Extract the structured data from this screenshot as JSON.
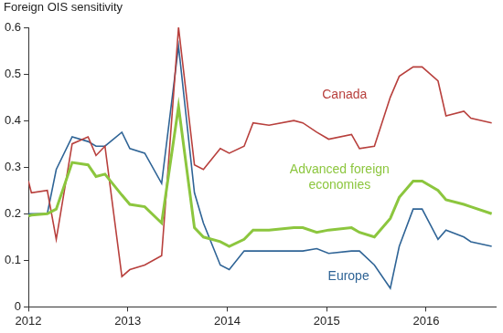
{
  "chart_data": {
    "type": "line",
    "ylabel": "Foreign OIS sensitivity",
    "x": [
      2012.0,
      2012.03,
      2012.19,
      2012.28,
      2012.44,
      2012.6,
      2012.68,
      2012.77,
      2012.94,
      2013.02,
      2013.17,
      2013.34,
      2013.51,
      2013.67,
      2013.76,
      2013.93,
      2014.02,
      2014.17,
      2014.26,
      2014.42,
      2014.67,
      2014.76,
      2014.9,
      2015.02,
      2015.25,
      2015.33,
      2015.48,
      2015.64,
      2015.73,
      2015.87,
      2015.96,
      2016.12,
      2016.2,
      2016.38,
      2016.45,
      2016.66
    ],
    "series": [
      {
        "name": "Canada",
        "color": "#b8403d",
        "values": [
          0.27,
          0.245,
          0.25,
          0.145,
          0.35,
          0.365,
          0.325,
          0.345,
          0.065,
          0.08,
          0.09,
          0.11,
          0.6,
          0.305,
          0.295,
          0.34,
          0.33,
          0.345,
          0.395,
          0.39,
          0.4,
          0.395,
          0.375,
          0.36,
          0.37,
          0.34,
          0.345,
          0.45,
          0.495,
          0.515,
          0.515,
          0.485,
          0.41,
          0.42,
          0.405,
          0.395
        ]
      },
      {
        "name": "Advanced foreign economies",
        "color": "#8cc63e",
        "values": [
          0.195,
          0.197,
          0.2,
          0.21,
          0.31,
          0.305,
          0.28,
          0.285,
          0.24,
          0.22,
          0.215,
          0.18,
          0.43,
          0.17,
          0.15,
          0.14,
          0.13,
          0.145,
          0.165,
          0.165,
          0.17,
          0.17,
          0.16,
          0.165,
          0.17,
          0.16,
          0.15,
          0.19,
          0.235,
          0.27,
          0.27,
          0.25,
          0.23,
          0.22,
          0.215,
          0.2
        ]
      },
      {
        "name": "Europe",
        "color": "#2f6496",
        "values": [
          0.2,
          0.2,
          0.2,
          0.295,
          0.365,
          0.355,
          0.345,
          0.345,
          0.375,
          0.34,
          0.33,
          0.265,
          0.56,
          0.245,
          0.18,
          0.09,
          0.08,
          0.12,
          0.12,
          0.12,
          0.12,
          0.12,
          0.125,
          0.115,
          0.12,
          0.12,
          0.09,
          0.04,
          0.13,
          0.21,
          0.21,
          0.145,
          0.165,
          0.15,
          0.14,
          0.13
        ]
      }
    ],
    "annotations": [
      {
        "text": [
          "Canada"
        ],
        "x": 2015.18,
        "y": 0.455,
        "color": "#b8403d"
      },
      {
        "text": [
          "Advanced foreign",
          "economies"
        ],
        "x": 2015.13,
        "y": 0.295,
        "color": "#8cc63e"
      },
      {
        "text": [
          "Europe"
        ],
        "x": 2015.22,
        "y": 0.065,
        "color": "#2f6496"
      }
    ],
    "xlim": [
      2012,
      2016.7
    ],
    "xticks": [
      2012,
      2013,
      2014,
      2015,
      2016
    ],
    "ylim": [
      0,
      0.6
    ],
    "yticks": [
      0,
      0.1,
      0.2,
      0.3,
      0.4,
      0.5,
      0.6
    ],
    "grid": false,
    "legend": false
  }
}
